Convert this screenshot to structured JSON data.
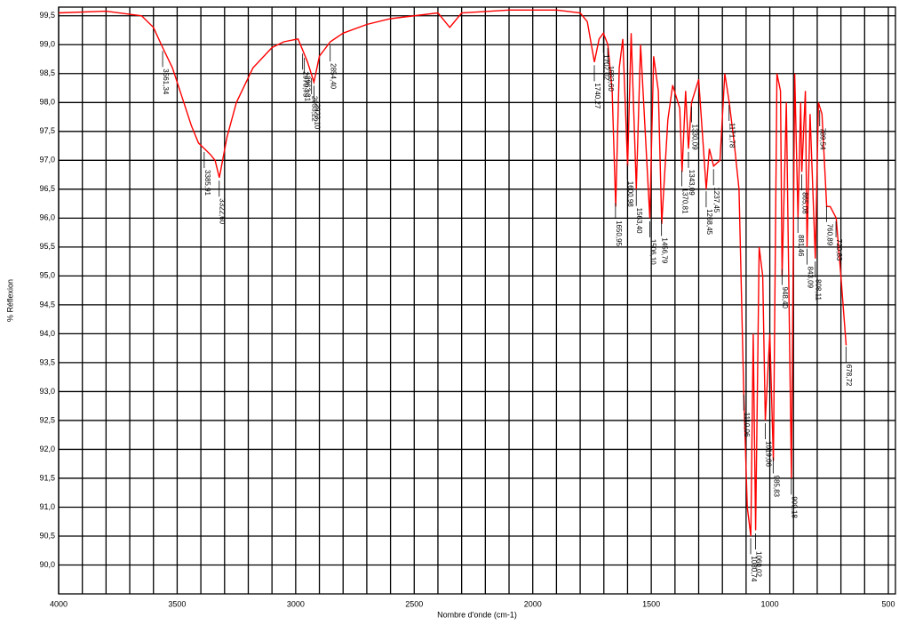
{
  "chart_data": {
    "type": "line",
    "x_label": "Nombre d'onde (cm-1)",
    "y_label": "% Réflexion",
    "xlim": [
      4000,
      470
    ],
    "ylim": [
      89.5,
      99.65
    ],
    "xticks": [
      4000,
      3500,
      3000,
      2500,
      2000,
      1500,
      1000,
      500
    ],
    "xgrid": [
      3900,
      3800,
      3700,
      3600,
      3400,
      3300,
      3200,
      3100,
      2900,
      2800,
      2700,
      2600,
      2400,
      2300,
      2200,
      2100,
      1900,
      1800,
      1700,
      1600,
      1400,
      1300,
      1200,
      1100,
      900,
      800,
      700,
      600
    ],
    "yticks": [
      {
        "value": 99.5,
        "label": "99,5"
      },
      {
        "value": 99.0,
        "label": "99,0"
      },
      {
        "value": 98.5,
        "label": "98,5"
      },
      {
        "value": 98.0,
        "label": "98,0"
      },
      {
        "value": 97.5,
        "label": "97,5"
      },
      {
        "value": 97.0,
        "label": "97,0"
      },
      {
        "value": 96.5,
        "label": "96,5"
      },
      {
        "value": 96.0,
        "label": "96,0"
      },
      {
        "value": 95.5,
        "label": "95,5"
      },
      {
        "value": 95.0,
        "label": "95,0"
      },
      {
        "value": 94.5,
        "label": "94,5"
      },
      {
        "value": 94.0,
        "label": "94,0"
      },
      {
        "value": 93.5,
        "label": "93,5"
      },
      {
        "value": 93.0,
        "label": "93,0"
      },
      {
        "value": 92.5,
        "label": "92,5"
      },
      {
        "value": 92.0,
        "label": "92,0"
      },
      {
        "value": 91.5,
        "label": "91,5"
      },
      {
        "value": 91.0,
        "label": "91,0"
      },
      {
        "value": 90.5,
        "label": "90,5"
      },
      {
        "value": 90.0,
        "label": "90,0"
      }
    ],
    "grid": true,
    "series": [
      {
        "color": "#ff0000",
        "x": [
          4000,
          3800,
          3650,
          3600,
          3561,
          3520,
          3480,
          3440,
          3410,
          3385,
          3360,
          3340,
          3322,
          3290,
          3250,
          3180,
          3100,
          3050,
          2990,
          2970,
          2950,
          2923,
          2900,
          2854,
          2800,
          2700,
          2600,
          2400,
          2350,
          2300,
          2100,
          1900,
          1800,
          1770,
          1740,
          1720,
          1702,
          1683,
          1665,
          1650,
          1635,
          1620,
          1600,
          1585,
          1563,
          1545,
          1506,
          1490,
          1470,
          1456,
          1430,
          1410,
          1380,
          1370,
          1355,
          1343,
          1330,
          1300,
          1268,
          1255,
          1237,
          1210,
          1190,
          1171,
          1150,
          1130,
          1110,
          1095,
          1080,
          1070,
          1060,
          1045,
          1030,
          1019,
          1000,
          985,
          970,
          955,
          948,
          930,
          909,
          895,
          881,
          870,
          865,
          850,
          843,
          830,
          808,
          795,
          780,
          760,
          745,
          720,
          700,
          678
        ],
        "values": [
          99.55,
          99.58,
          99.5,
          99.3,
          98.95,
          98.6,
          98.1,
          97.6,
          97.3,
          97.2,
          97.1,
          97.0,
          96.7,
          97.4,
          98.0,
          98.6,
          98.95,
          99.05,
          99.1,
          98.9,
          98.7,
          98.35,
          98.8,
          99.05,
          99.2,
          99.35,
          99.45,
          99.55,
          99.3,
          99.55,
          99.6,
          99.6,
          99.55,
          99.4,
          98.7,
          99.1,
          99.2,
          99.0,
          98.2,
          96.2,
          98.6,
          99.1,
          96.9,
          99.2,
          96.5,
          99.0,
          96.0,
          98.8,
          98.2,
          95.9,
          97.7,
          98.3,
          97.9,
          96.8,
          98.2,
          97.2,
          98.0,
          98.4,
          96.5,
          97.2,
          96.9,
          97.0,
          98.5,
          98.0,
          97.3,
          96.5,
          93.0,
          91.0,
          90.5,
          94.0,
          90.6,
          95.5,
          95.0,
          92.5,
          94.0,
          91.8,
          98.5,
          98.2,
          95.0,
          98.0,
          91.5,
          98.5,
          96.0,
          98.0,
          96.8,
          98.2,
          95.5,
          97.8,
          95.3,
          98.0,
          97.8,
          96.2,
          96.2,
          96.0,
          95.0,
          93.8
        ]
      }
    ],
    "peaks": [
      {
        "x": 3561.34,
        "label": "3561,34"
      },
      {
        "x": 3385.91,
        "label": "3385,91"
      },
      {
        "x": 3322.6,
        "label": "3322,60"
      },
      {
        "x": 2963.31,
        "label": "2963,31"
      },
      {
        "x": 2933.22,
        "label": "2933,22"
      },
      {
        "x": 2970.75,
        "label": "2970,75"
      },
      {
        "x": 2923.1,
        "label": "2923,10"
      },
      {
        "x": 2854.4,
        "label": "2854,40"
      },
      {
        "x": 1740.27,
        "label": "1740,27"
      },
      {
        "x": 1702.02,
        "label": "1702,02"
      },
      {
        "x": 1683.6,
        "label": "1683,60"
      },
      {
        "x": 1650.95,
        "label": "1650,95"
      },
      {
        "x": 1600.98,
        "label": "1600,98"
      },
      {
        "x": 1563.4,
        "label": "1563,40"
      },
      {
        "x": 1506.1,
        "label": "1506,10"
      },
      {
        "x": 1456.79,
        "label": "1456,79"
      },
      {
        "x": 1370.81,
        "label": "1370,81"
      },
      {
        "x": 1343.09,
        "label": "1343,09"
      },
      {
        "x": 1330.09,
        "label": "1330,09"
      },
      {
        "x": 1268.45,
        "label": "1268,45"
      },
      {
        "x": 1237.45,
        "label": "1237,45"
      },
      {
        "x": 1171.78,
        "label": "1171,78"
      },
      {
        "x": 1110.06,
        "label": "1110,06"
      },
      {
        "x": 1080.74,
        "label": "1080,74"
      },
      {
        "x": 1060.02,
        "label": "1060,02"
      },
      {
        "x": 1019.06,
        "label": "1019,06"
      },
      {
        "x": 985.83,
        "label": "985,83"
      },
      {
        "x": 948.4,
        "label": "948,40"
      },
      {
        "x": 909.18,
        "label": "909,18"
      },
      {
        "x": 881.46,
        "label": "881,46"
      },
      {
        "x": 865.08,
        "label": "865,08"
      },
      {
        "x": 843.09,
        "label": "843,09"
      },
      {
        "x": 808.11,
        "label": "808,11"
      },
      {
        "x": 789.54,
        "label": "789,54"
      },
      {
        "x": 760.89,
        "label": "760,89"
      },
      {
        "x": 720.83,
        "label": "720,83"
      },
      {
        "x": 678.72,
        "label": "678,72"
      }
    ]
  }
}
